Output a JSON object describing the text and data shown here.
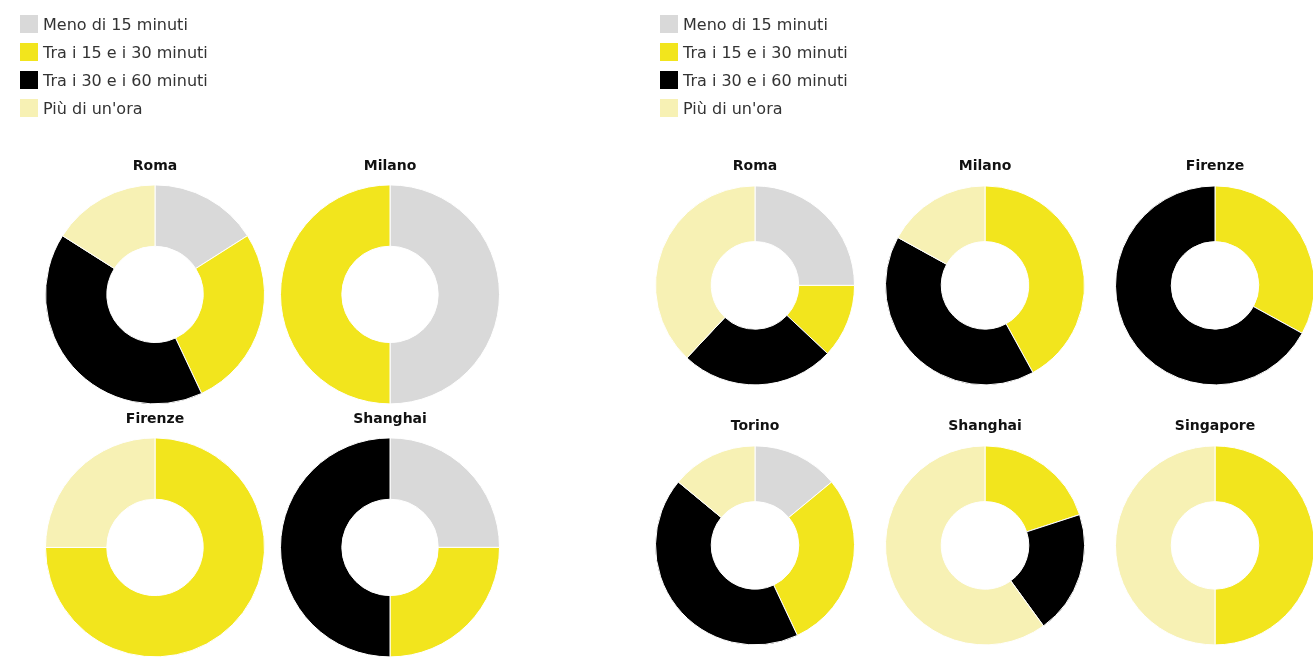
{
  "chart_data": [
    {
      "type": "donut",
      "legend": "top left",
      "categories": [
        "Meno di 15 minuti",
        "Tra i 15 e i 30 minuti",
        "Tra i 30 e i 60 minuti",
        "Più di un'ora"
      ],
      "colors": [
        "#d9d9d9",
        "#f2e51d",
        "#000000",
        "#f7f1b4"
      ],
      "series": [
        {
          "name": "Roma",
          "values": [
            16,
            27,
            41,
            16
          ]
        },
        {
          "name": "Milano",
          "values": [
            50,
            50,
            0,
            0
          ]
        },
        {
          "name": "Firenze",
          "values": [
            0,
            75,
            0,
            25
          ]
        },
        {
          "name": "Shanghai",
          "values": [
            25,
            25,
            50,
            0
          ]
        }
      ]
    },
    {
      "type": "donut",
      "legend": "top left",
      "categories": [
        "Meno di 15 minuti",
        "Tra i 15 e i 30 minuti",
        "Tra i 30 e i 60 minuti",
        "Più di un'ora"
      ],
      "colors": [
        "#d9d9d9",
        "#f2e51d",
        "#000000",
        "#f7f1b4"
      ],
      "series": [
        {
          "name": "Roma",
          "values": [
            25,
            12,
            25,
            38
          ]
        },
        {
          "name": "Milano",
          "values": [
            0,
            42,
            41,
            17
          ]
        },
        {
          "name": "Firenze",
          "values": [
            0,
            33,
            67,
            0
          ]
        },
        {
          "name": "Torino",
          "values": [
            14,
            29,
            43,
            14
          ]
        },
        {
          "name": "Shanghai",
          "values": [
            0,
            20,
            20,
            60
          ]
        },
        {
          "name": "Singapore",
          "values": [
            0,
            50,
            0,
            50
          ]
        }
      ]
    }
  ]
}
